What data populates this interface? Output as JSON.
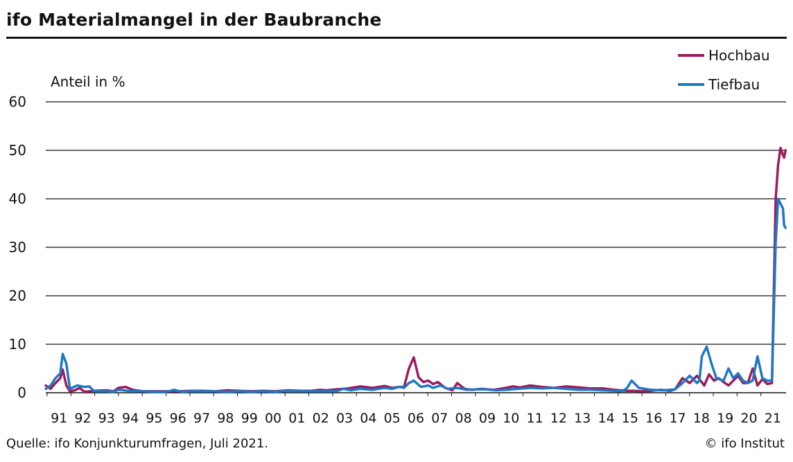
{
  "header": {
    "title": "ifo Materialmangel in der Baubranche"
  },
  "footer": {
    "source": "Quelle: ifo Konjunkturumfragen, Juli 2021.",
    "copyright": "© ifo Institut"
  },
  "chart_data": {
    "type": "line",
    "ylabel": "Anteil in %",
    "ylim": [
      0,
      60
    ],
    "yticks": [
      0,
      10,
      20,
      30,
      40,
      50,
      60
    ],
    "xlim": [
      1991.0,
      2021.58
    ],
    "xtick_labels": [
      "91",
      "92",
      "93",
      "94",
      "95",
      "96",
      "97",
      "98",
      "99",
      "00",
      "01",
      "02",
      "03",
      "04",
      "05",
      "06",
      "07",
      "08",
      "09",
      "10",
      "11",
      "12",
      "13",
      "14",
      "15",
      "16",
      "17",
      "18",
      "19",
      "20",
      "21"
    ],
    "grid": "horizontal",
    "legend": "top-right",
    "colors": {
      "Hochbau": "#9b1c5e",
      "Tiefbau": "#1f78c4"
    },
    "series": [
      {
        "name": "Hochbau",
        "x": [
          1991.0,
          1991.2,
          1991.4,
          1991.6,
          1991.7,
          1991.85,
          1992.0,
          1992.2,
          1992.4,
          1992.6,
          1993.0,
          1993.5,
          1993.8,
          1994.0,
          1994.3,
          1994.6,
          1995.0,
          1995.5,
          1996.0,
          1996.5,
          1997.0,
          1997.5,
          1998.0,
          1998.5,
          1999.0,
          1999.5,
          2000.0,
          2000.5,
          2001.0,
          2001.5,
          2002.0,
          2002.3,
          2002.6,
          2003.0,
          2003.5,
          2004.0,
          2004.5,
          2005.0,
          2005.3,
          2005.6,
          2005.8,
          2006.0,
          2006.2,
          2006.4,
          2006.6,
          2006.8,
          2007.0,
          2007.2,
          2007.5,
          2007.8,
          2008.0,
          2008.3,
          2008.6,
          2009.0,
          2009.5,
          2010.0,
          2010.3,
          2010.6,
          2011.0,
          2011.5,
          2012.0,
          2012.5,
          2013.0,
          2013.5,
          2014.0,
          2014.5,
          2015.0,
          2015.3,
          2015.6,
          2016.0,
          2016.4,
          2016.8,
          2017.0,
          2017.3,
          2017.6,
          2017.9,
          2018.0,
          2018.2,
          2018.4,
          2018.6,
          2018.8,
          2019.0,
          2019.2,
          2019.4,
          2019.6,
          2019.8,
          2020.0,
          2020.2,
          2020.4,
          2020.6,
          2020.8,
          2021.0,
          2021.15,
          2021.25,
          2021.35,
          2021.45,
          2021.5,
          2021.56
        ],
        "y": [
          1.5,
          0.8,
          2.0,
          3.0,
          4.8,
          1.5,
          0.3,
          0.5,
          1.0,
          0.2,
          0.4,
          0.5,
          0.3,
          1.0,
          1.2,
          0.6,
          0.3,
          0.3,
          0.3,
          0.3,
          0.4,
          0.4,
          0.3,
          0.5,
          0.4,
          0.3,
          0.4,
          0.3,
          0.5,
          0.4,
          0.4,
          0.6,
          0.5,
          0.7,
          0.9,
          1.3,
          1.0,
          1.4,
          1.0,
          1.2,
          1.2,
          5.0,
          7.3,
          3.2,
          2.2,
          2.5,
          1.8,
          2.2,
          1.0,
          0.5,
          2.0,
          0.8,
          0.6,
          0.8,
          0.6,
          1.0,
          1.3,
          1.1,
          1.5,
          1.2,
          1.0,
          1.3,
          1.1,
          0.9,
          0.9,
          0.6,
          0.4,
          0.4,
          0.3,
          0.4,
          0.6,
          0.4,
          0.7,
          3.0,
          2.0,
          3.5,
          2.8,
          1.5,
          3.8,
          2.5,
          3.0,
          2.2,
          1.5,
          2.5,
          3.5,
          2.0,
          2.0,
          5.0,
          1.5,
          2.8,
          1.8,
          2.0,
          40.0,
          47.0,
          50.5,
          49.0,
          48.5,
          50.0
        ]
      },
      {
        "name": "Tiefbau",
        "x": [
          1991.0,
          1991.2,
          1991.4,
          1991.6,
          1991.7,
          1991.85,
          1992.0,
          1992.3,
          1992.6,
          1992.8,
          1993.0,
          1993.5,
          1993.8,
          1994.0,
          1994.4,
          1994.7,
          1995.0,
          1995.5,
          1996.0,
          1996.3,
          1996.6,
          1997.0,
          1997.5,
          1998.0,
          1998.5,
          1999.0,
          1999.5,
          2000.0,
          2000.5,
          2001.0,
          2001.5,
          2002.0,
          2002.5,
          2003.0,
          2003.3,
          2003.6,
          2004.0,
          2004.5,
          2005.0,
          2005.3,
          2005.6,
          2005.8,
          2006.0,
          2006.2,
          2006.5,
          2006.8,
          2007.0,
          2007.3,
          2007.6,
          2008.0,
          2008.4,
          2008.8,
          2009.2,
          2009.6,
          2010.0,
          2010.5,
          2011.0,
          2011.5,
          2012.0,
          2012.5,
          2013.0,
          2013.5,
          2014.0,
          2014.5,
          2014.8,
          2015.0,
          2015.2,
          2015.5,
          2016.0,
          2016.5,
          2017.0,
          2017.3,
          2017.6,
          2017.9,
          2018.0,
          2018.1,
          2018.3,
          2018.5,
          2018.7,
          2019.0,
          2019.2,
          2019.4,
          2019.6,
          2019.8,
          2020.0,
          2020.2,
          2020.4,
          2020.6,
          2020.8,
          2021.0,
          2021.15,
          2021.25,
          2021.35,
          2021.45,
          2021.5,
          2021.56
        ],
        "y": [
          0.8,
          1.5,
          3.0,
          4.0,
          8.0,
          6.0,
          0.8,
          1.5,
          1.2,
          1.3,
          0.3,
          0.3,
          0.2,
          0.6,
          0.4,
          0.3,
          0.3,
          0.2,
          0.2,
          0.6,
          0.2,
          0.3,
          0.3,
          0.3,
          0.2,
          0.3,
          0.2,
          0.3,
          0.2,
          0.4,
          0.3,
          0.3,
          0.3,
          0.3,
          0.8,
          0.5,
          0.8,
          0.6,
          1.0,
          0.8,
          1.2,
          1.0,
          2.0,
          2.5,
          1.2,
          1.5,
          1.0,
          1.5,
          0.8,
          1.0,
          0.6,
          0.7,
          0.7,
          0.5,
          0.6,
          0.8,
          1.0,
          0.9,
          1.0,
          0.8,
          0.6,
          0.6,
          0.5,
          0.4,
          0.3,
          0.9,
          2.5,
          1.0,
          0.6,
          0.5,
          0.7,
          2.0,
          3.5,
          2.0,
          2.5,
          7.5,
          9.5,
          6.0,
          3.0,
          2.5,
          5.0,
          3.0,
          4.0,
          2.5,
          2.0,
          2.5,
          7.5,
          3.0,
          2.5,
          2.5,
          31.0,
          40.0,
          39.0,
          38.0,
          34.5,
          34.0
        ]
      }
    ]
  }
}
